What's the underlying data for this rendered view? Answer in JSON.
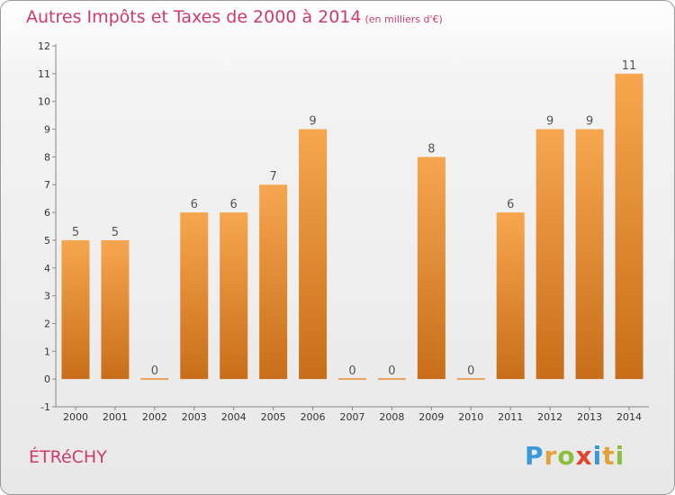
{
  "title": "Autres Impôts et Taxes de 2000 à 2014",
  "title_unit": "(en milliers d'€)",
  "commune": "ÉTRéCHY",
  "logo": {
    "letters": [
      "P",
      "r",
      "o",
      "x",
      "i",
      "t",
      "i"
    ],
    "colors": [
      "#3a9ad9",
      "#e5a23a",
      "#8cbf3f",
      "#e0452e",
      "#3a9ad9",
      "#e5a23a",
      "#8cbf3f"
    ]
  },
  "colors": {
    "bar_top": "#f7a64f",
    "bar_bottom": "#c86e19",
    "title": "#cf3a6b"
  },
  "chart_data": {
    "type": "bar",
    "title": "Autres Impôts et Taxes de 2000 à 2014",
    "categories": [
      "2000",
      "2001",
      "2002",
      "2003",
      "2004",
      "2005",
      "2006",
      "2007",
      "2008",
      "2009",
      "2010",
      "2011",
      "2012",
      "2013",
      "2014"
    ],
    "values": [
      5,
      5,
      0,
      6,
      6,
      7,
      9,
      0,
      0,
      8,
      0,
      6,
      9,
      9,
      11
    ],
    "labels": [
      "5",
      "5",
      "0",
      "6",
      "6",
      "7",
      "9",
      "0",
      "0",
      "8",
      "0",
      "6",
      "9",
      "9",
      "11"
    ],
    "ylim": [
      -1,
      12
    ],
    "yticks": [
      -1,
      0,
      1,
      2,
      3,
      4,
      5,
      6,
      7,
      8,
      9,
      10,
      11,
      12
    ],
    "grid": false
  }
}
